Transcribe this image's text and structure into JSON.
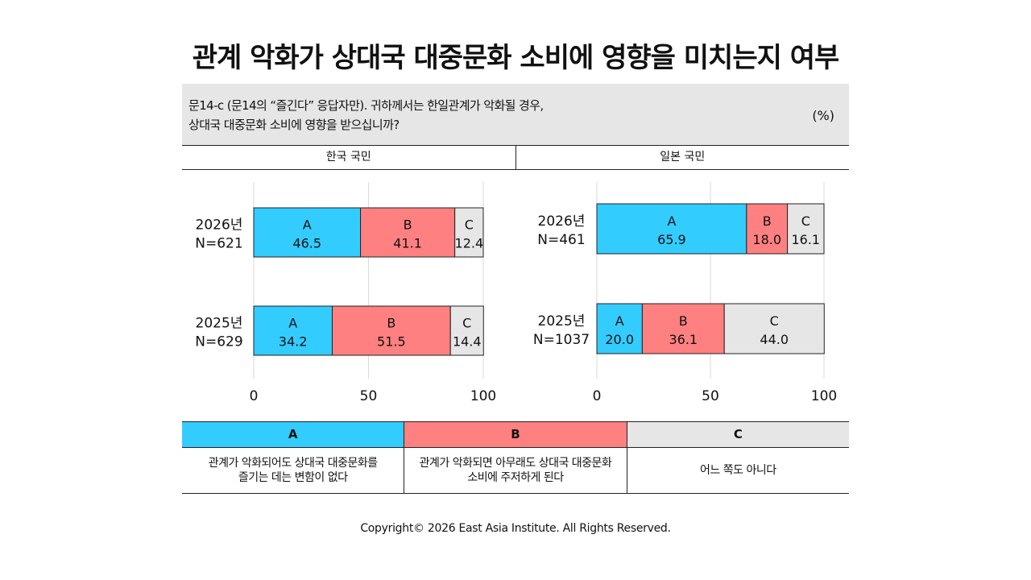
{
  "title": "관계 악화가 상대국 대중문화 소비에 영향을 미치는지 여부",
  "question": {
    "line1": "문14-c (문14의 “즐긴다” 응답자만). 귀하께서는 한일관계가 악화될 경우,",
    "line2": "상대국 대중문화 소비에 영향을 받으십니까?",
    "unit": "(%)"
  },
  "groups": [
    "한국 국민",
    "일본 국민"
  ],
  "colors": {
    "A": "#33ccff",
    "B": "#ff8080",
    "C": "#e6e6e6"
  },
  "chart_data": [
    {
      "type": "bar",
      "orientation": "horizontal",
      "stacked": true,
      "group": "한국 국민",
      "categories": [
        [
          "2026년",
          "N=621"
        ],
        [
          "2025년",
          "N=629"
        ]
      ],
      "series": [
        {
          "name": "A",
          "values": [
            46.5,
            34.2
          ]
        },
        {
          "name": "B",
          "values": [
            41.1,
            51.5
          ]
        },
        {
          "name": "C",
          "values": [
            12.4,
            14.4
          ]
        }
      ],
      "xlim": [
        0,
        100
      ],
      "xticks": [
        0,
        50,
        100
      ],
      "grid": true
    },
    {
      "type": "bar",
      "orientation": "horizontal",
      "stacked": true,
      "group": "일본 국민",
      "categories": [
        [
          "2026년",
          "N=461"
        ],
        [
          "2025년",
          "N=1037"
        ]
      ],
      "series": [
        {
          "name": "A",
          "values": [
            65.9,
            20.0
          ]
        },
        {
          "name": "B",
          "values": [
            18.0,
            36.1
          ]
        },
        {
          "name": "C",
          "values": [
            16.1,
            44.0
          ]
        }
      ],
      "xlim": [
        0,
        100
      ],
      "xticks": [
        0,
        50,
        100
      ],
      "grid": true
    }
  ],
  "legend": [
    {
      "key": "A",
      "desc": "관계가 악화되어도 상대국 대중문화를\n즐기는 데는 변함이 없다"
    },
    {
      "key": "B",
      "desc": "관계가 악화되면 아무래도 상대국 대중문화\n소비에 주저하게 된다"
    },
    {
      "key": "C",
      "desc": "어느 쪽도 아니다"
    }
  ],
  "footer": "Copyright© 2026 East Asia Institute. All Rights Reserved."
}
